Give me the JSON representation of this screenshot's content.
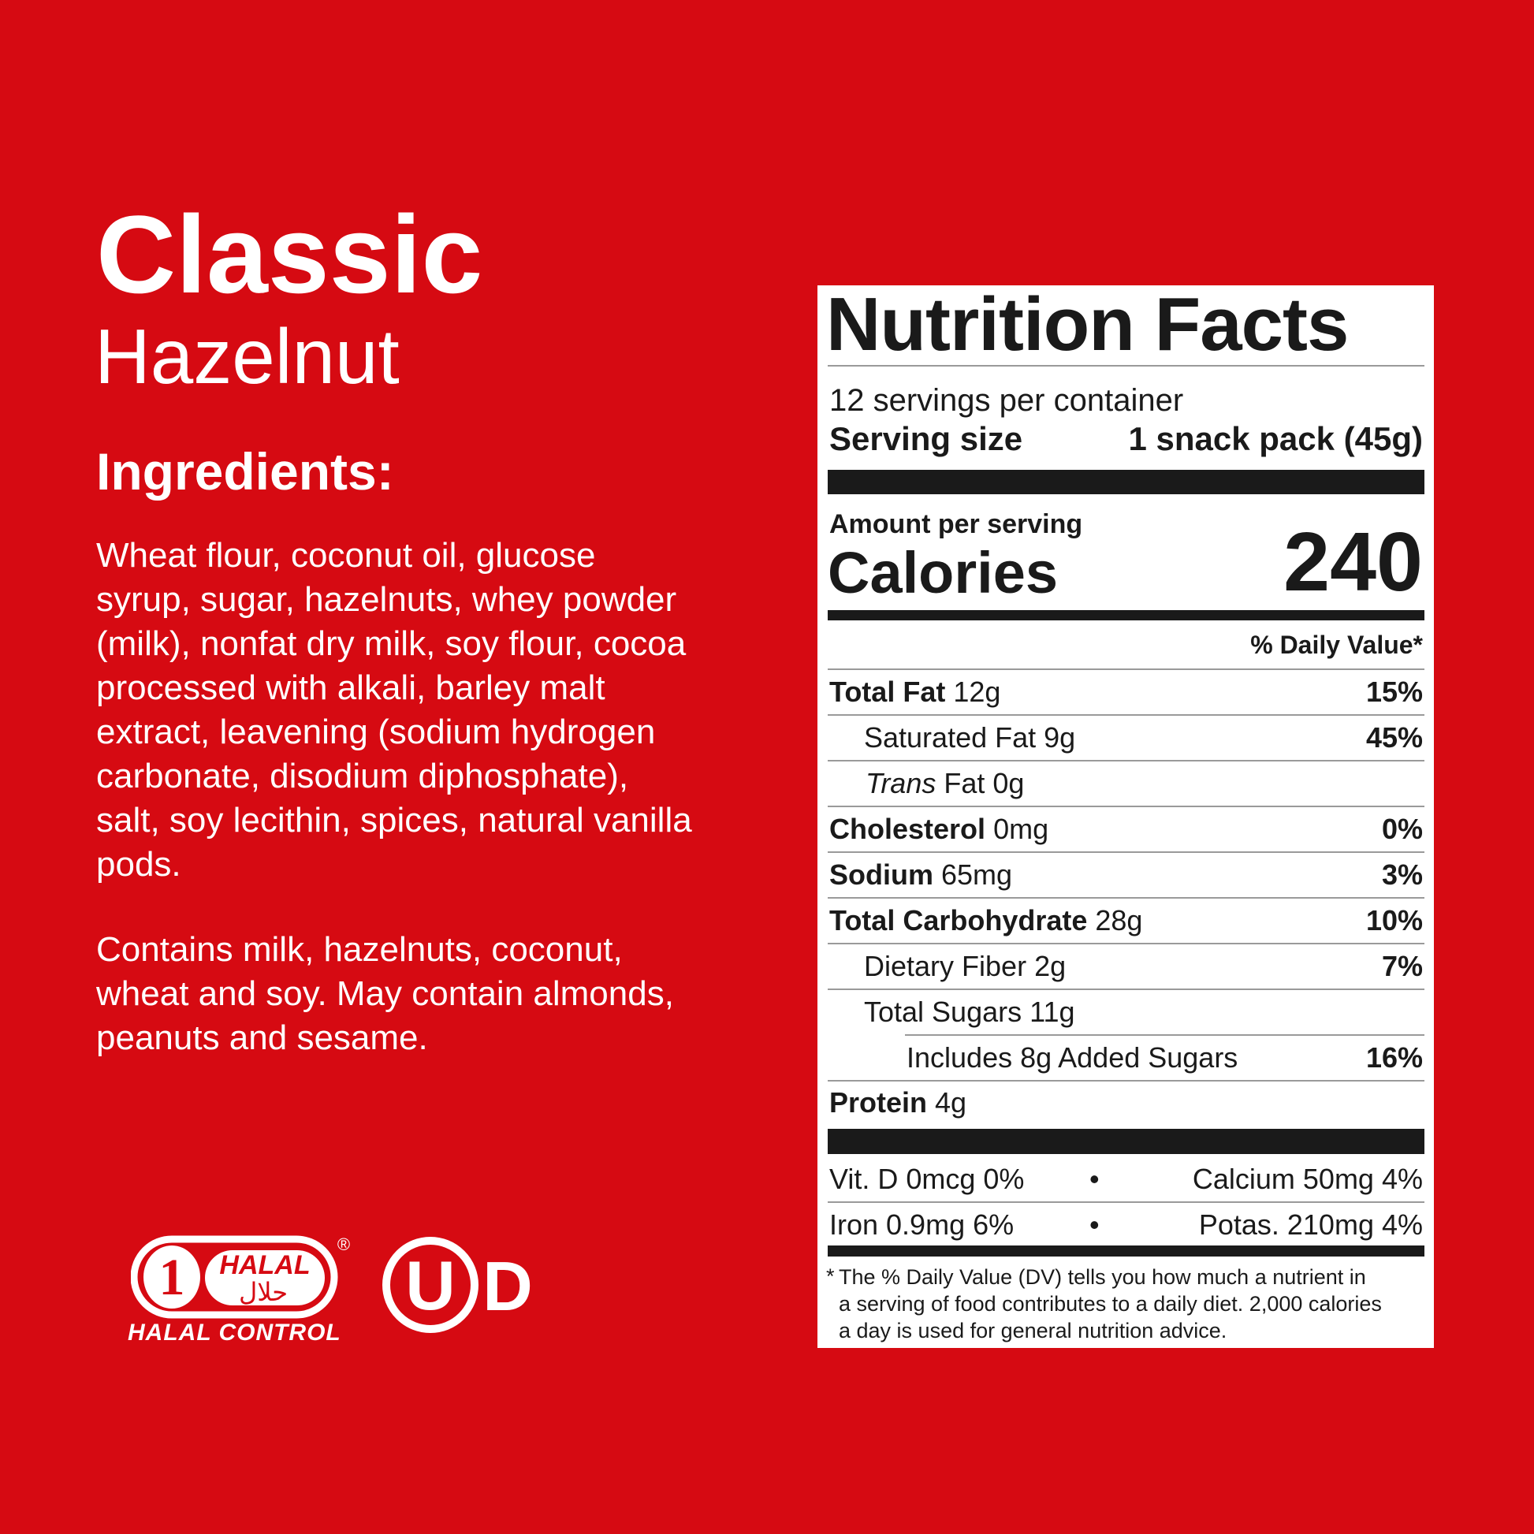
{
  "colors": {
    "background": "#d60a12",
    "panel": "#ffffff",
    "ink": "#1a1a1a"
  },
  "product": {
    "name": "Classic",
    "flavor": "Hazelnut"
  },
  "ingredients": {
    "heading": "Ingredients:",
    "lines": [
      "Wheat flour, coconut oil, glucose",
      "syrup, sugar, hazelnuts, whey powder",
      "(milk), nonfat dry milk, soy flour, cocoa",
      "processed with alkali, barley malt",
      "extract, leavening (sodium hydrogen",
      "carbonate, disodium diphosphate),",
      "salt, soy lecithin, spices, natural vanilla",
      "pods."
    ],
    "allergen_lines": [
      "Contains milk, hazelnuts, coconut,",
      "wheat and soy. May contain almonds,",
      "peanuts and sesame."
    ]
  },
  "logos": {
    "halal": {
      "top_text": "HALAL",
      "arabic": "حلال",
      "caption": "HALAL CONTROL",
      "registered": "®",
      "numeral": "1"
    },
    "kosher": {
      "letter": "U",
      "suffix": "D"
    }
  },
  "nutrition": {
    "title": "Nutrition Facts",
    "servings": "12 servings per container",
    "serving_size_label": "Serving size",
    "serving_size_value": "1 snack pack (45g)",
    "amount_per_serving": "Amount per serving",
    "calories_label": "Calories",
    "calories_value": "240",
    "dv_header": "% Daily Value*",
    "rows": [
      {
        "name": "Total Fat",
        "amount": "12g",
        "dv": "15%"
      },
      {
        "name": "Saturated Fat",
        "amount": "9g",
        "dv": "45%"
      },
      {
        "name": "Trans",
        "name_suffix": " Fat",
        "amount": "0g",
        "dv": ""
      },
      {
        "name": "Cholesterol",
        "amount": "0mg",
        "dv": "0%"
      },
      {
        "name": "Sodium",
        "amount": "65mg",
        "dv": "3%"
      },
      {
        "name": "Total Carbohydrate",
        "amount": "28g",
        "dv": "10%"
      },
      {
        "name": "Dietary Fiber",
        "amount": "2g",
        "dv": "7%"
      },
      {
        "name": "Total Sugars",
        "amount": "11g",
        "dv": ""
      },
      {
        "name": "Includes 8g Added Sugars",
        "amount": "",
        "dv": "16%"
      },
      {
        "name": "Protein",
        "amount": "4g",
        "dv": ""
      }
    ],
    "micros": [
      {
        "left": "Vit. D 0mcg 0%",
        "right": "Calcium 50mg 4%"
      },
      {
        "left": "Iron 0.9mg 6%",
        "right": "Potas. 210mg 4%"
      }
    ],
    "bullet": "•",
    "footnote_star": "*",
    "footnote_lines": [
      "The % Daily Value (DV) tells you how much a nutrient in",
      "a serving of food contributes to a daily diet. 2,000 calories",
      "a day is used for general nutrition advice."
    ]
  }
}
